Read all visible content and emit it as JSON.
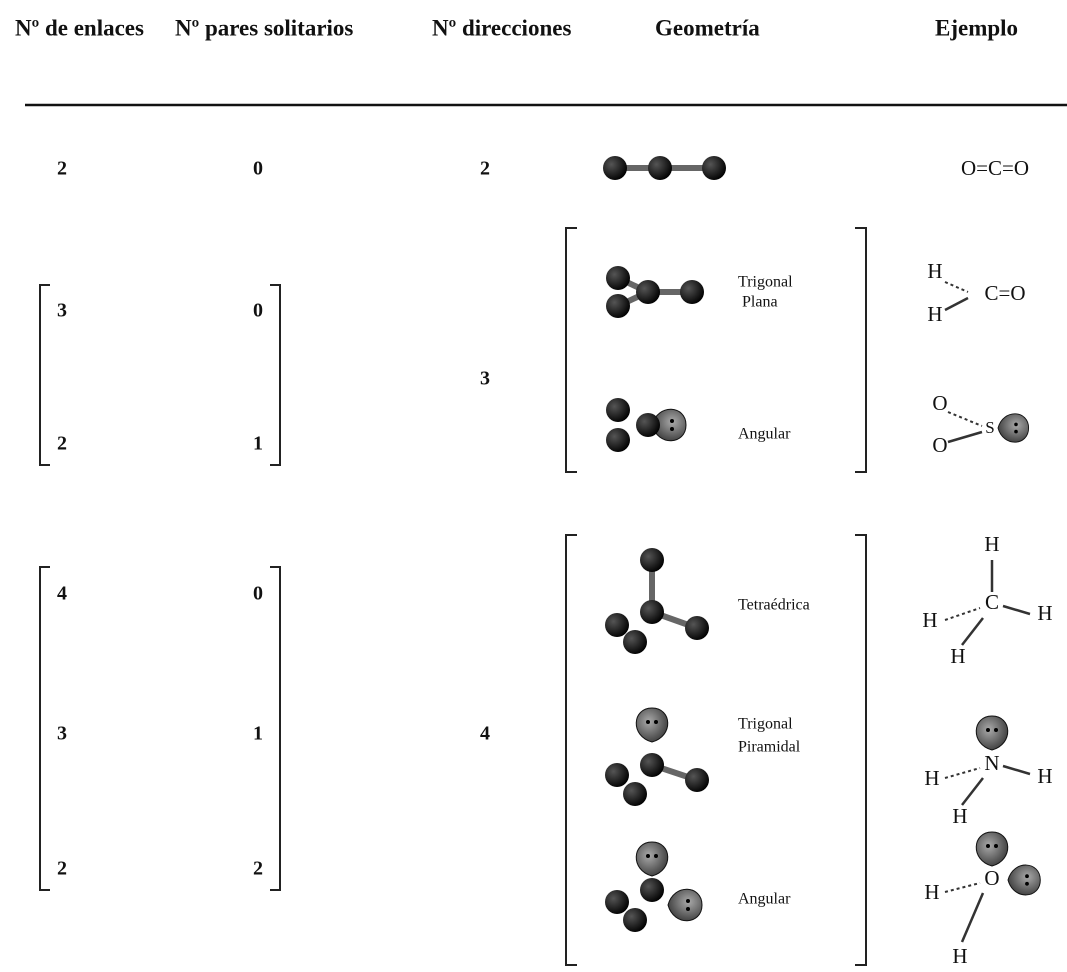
{
  "header": [
    "Nº de enlaces",
    "Nº  pares solitarios",
    "Nº direcciones",
    "Geometría",
    "Ejemplo"
  ],
  "groups": [
    {
      "directions": 2,
      "rows": [
        {
          "bonds": 2,
          "lone_pairs": 0,
          "example": [
            "O=C=O"
          ]
        }
      ]
    },
    {
      "directions": 3,
      "rows": [
        {
          "bonds": 3,
          "lone_pairs": 0,
          "geometry": [
            "Trigonal",
            "Plana"
          ],
          "example": [
            "H",
            "H",
            "C=O"
          ]
        },
        {
          "bonds": 2,
          "lone_pairs": 1,
          "geometry": [
            "Angular"
          ],
          "example": [
            "O",
            "O",
            "S"
          ]
        }
      ]
    },
    {
      "directions": 4,
      "rows": [
        {
          "bonds": 4,
          "lone_pairs": 0,
          "geometry": [
            "Tetraédrica"
          ],
          "example": [
            "H",
            "H",
            "C",
            "H",
            "H"
          ]
        },
        {
          "bonds": 3,
          "lone_pairs": 1,
          "geometry": [
            "Trigonal",
            "Piramidal"
          ],
          "example": [
            "N",
            "H",
            "H",
            "H"
          ]
        },
        {
          "bonds": 2,
          "lone_pairs": 2,
          "geometry": [
            "Angular"
          ],
          "example": [
            "O",
            "H",
            "H"
          ]
        }
      ]
    }
  ]
}
